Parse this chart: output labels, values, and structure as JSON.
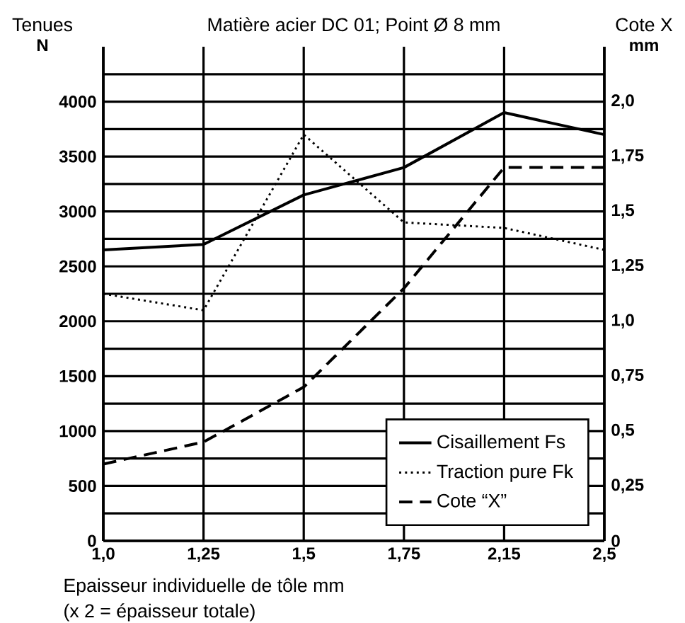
{
  "chart_data": {
    "type": "line",
    "title": "Matière acier DC 01; Point Ø 8 mm",
    "ylabel": "Tenues",
    "y2label": "Cote X",
    "xlabel": "Epaisseur individuelle de tôle mm",
    "annotations": [
      "N",
      "mm",
      "(x 2 = épaisseur totale)"
    ],
    "categories": [
      "1,0",
      "1,25",
      "1,5",
      "1,75",
      "2,15",
      "2,5"
    ],
    "series": [
      {
        "name": "Cisaillement Fs",
        "color": "#000000",
        "line_style": "solid",
        "values": [
          2650,
          2700,
          3150,
          3400,
          3900,
          3700
        ]
      },
      {
        "name": "Traction pure Fk",
        "color": "#000000",
        "line_style": "dotted",
        "values": [
          2250,
          2100,
          3700,
          2900,
          2850,
          2650
        ]
      },
      {
        "name": "Cote “X”",
        "color": "#000000",
        "line_style": "dashed",
        "axis": "y2",
        "values": [
          0.35,
          0.45,
          0.7,
          1.15,
          1.7,
          1.7
        ]
      }
    ],
    "ylim": [
      0,
      4500
    ],
    "yticks": [
      0,
      {
        "value": 250,
        "label": null
      },
      500,
      {
        "value": 750,
        "label": null
      },
      1000,
      {
        "value": 1250,
        "label": null
      },
      1500,
      {
        "value": 1750,
        "label": null
      },
      2000,
      {
        "value": 2250,
        "label": null
      },
      2500,
      {
        "value": 2750,
        "label": null
      },
      3000,
      {
        "value": 3250,
        "label": null
      },
      3500,
      {
        "value": 3750,
        "label": null
      },
      4000,
      {
        "value": 4250,
        "label": null
      }
    ],
    "y2lim": [
      0,
      2.25
    ],
    "y2ticks": [
      0,
      {
        "value": 0.25,
        "label": "0,25"
      },
      {
        "value": 0.5,
        "label": "0,5"
      },
      {
        "value": 0.75,
        "label": "0,75"
      },
      {
        "value": 1.0,
        "label": "1,0"
      },
      {
        "value": 1.25,
        "label": "1,25"
      },
      {
        "value": 1.5,
        "label": "1,5"
      },
      {
        "value": 1.75,
        "label": "1,75"
      },
      {
        "value": 2.0,
        "label": "2,0"
      }
    ],
    "grid": true,
    "legend": "bottom right"
  }
}
